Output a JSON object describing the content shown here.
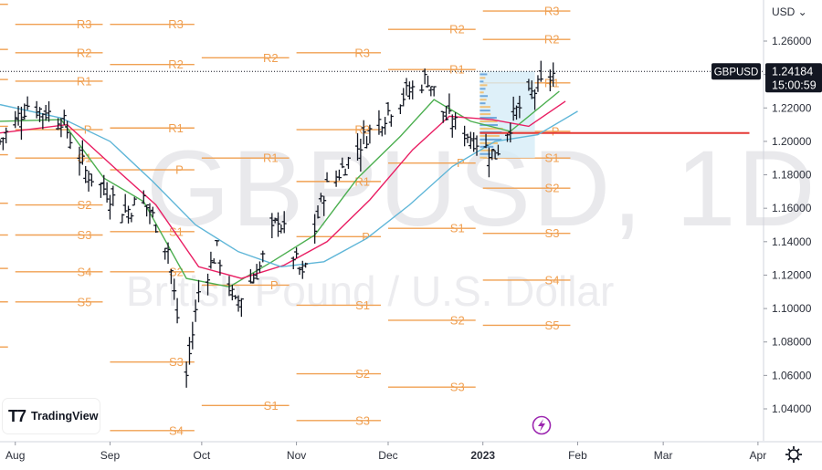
{
  "watermark": {
    "symbol_text": "GBPUSD, 1D",
    "name_text": "British Pound / U.S. Dollar"
  },
  "branding": {
    "name": "TradingView"
  },
  "price_axis": {
    "currency": "USD",
    "currency_menu": "⌄",
    "last_price": "1.24184",
    "countdown": "15:00:59",
    "symbol_tag": "GBPUSD"
  },
  "colors": {
    "candle": "#131722",
    "pivot": "#f0a052",
    "sma_fast": "#4caf50",
    "sma_mid": "#e91e63",
    "sma_slow": "#5fb6d8",
    "profile_poc": "#e53935",
    "profile_bars": "#6fa8dc",
    "profile_box": "#d6ecf7"
  },
  "chart_data": {
    "type": "ohlc",
    "symbol": "GBPUSD",
    "timeframe": "1D",
    "y_ticks": [
      1.26,
      1.24,
      1.22,
      1.2,
      1.18,
      1.16,
      1.14,
      1.12,
      1.1,
      1.08,
      1.06,
      1.04
    ],
    "y_tick_labels": [
      "1.26000",
      "1.24000",
      "1.22000",
      "1.20000",
      "1.18000",
      "1.16000",
      "1.14000",
      "1.12000",
      "1.10000",
      "1.08000",
      "1.06000",
      "1.04000"
    ],
    "ylim": [
      1.025,
      1.283
    ],
    "x_range": [
      "2022-07-27",
      "2023-04-10"
    ],
    "x_ticks": [
      {
        "date": "2022-08-01",
        "label": "Aug"
      },
      {
        "date": "2022-09-01",
        "label": "Sep"
      },
      {
        "date": "2022-10-01",
        "label": "Oct"
      },
      {
        "date": "2022-11-01",
        "label": "Nov"
      },
      {
        "date": "2022-12-01",
        "label": "Dec"
      },
      {
        "date": "2023-01-01",
        "label": "2023"
      },
      {
        "date": "2023-02-01",
        "label": "Feb"
      },
      {
        "date": "2023-03-01",
        "label": "Mar"
      },
      {
        "date": "2023-04-01",
        "label": "Apr"
      }
    ],
    "last_price": 1.24184,
    "price_path": [
      {
        "date": "2022-07-27",
        "close": 1.2
      },
      {
        "date": "2022-08-05",
        "close": 1.222
      },
      {
        "date": "2022-08-10",
        "close": 1.218
      },
      {
        "date": "2022-08-16",
        "close": 1.214
      },
      {
        "date": "2022-08-24",
        "close": 1.182
      },
      {
        "date": "2022-08-30",
        "close": 1.172
      },
      {
        "date": "2022-09-06",
        "close": 1.158
      },
      {
        "date": "2022-09-12",
        "close": 1.166
      },
      {
        "date": "2022-09-20",
        "close": 1.136
      },
      {
        "date": "2022-09-23",
        "close": 1.095
      },
      {
        "date": "2022-09-26",
        "close": 1.06
      },
      {
        "date": "2022-09-30",
        "close": 1.11
      },
      {
        "date": "2022-10-06",
        "close": 1.135
      },
      {
        "date": "2022-10-12",
        "close": 1.102
      },
      {
        "date": "2022-10-20",
        "close": 1.125
      },
      {
        "date": "2022-10-26",
        "close": 1.155
      },
      {
        "date": "2022-11-03",
        "close": 1.118
      },
      {
        "date": "2022-11-10",
        "close": 1.17
      },
      {
        "date": "2022-11-17",
        "close": 1.186
      },
      {
        "date": "2022-11-24",
        "close": 1.204
      },
      {
        "date": "2022-12-05",
        "close": 1.226
      },
      {
        "date": "2022-12-14",
        "close": 1.238
      },
      {
        "date": "2022-12-20",
        "close": 1.214
      },
      {
        "date": "2022-12-28",
        "close": 1.203
      },
      {
        "date": "2023-01-05",
        "close": 1.192
      },
      {
        "date": "2023-01-12",
        "close": 1.218
      },
      {
        "date": "2023-01-18",
        "close": 1.23
      },
      {
        "date": "2023-01-24",
        "close": 1.24
      }
    ],
    "moving_averages": [
      {
        "color": "#4caf50",
        "points": [
          {
            "date": "2022-07-27",
            "value": 1.212
          },
          {
            "date": "2022-08-16",
            "value": 1.213
          },
          {
            "date": "2022-08-30",
            "value": 1.178
          },
          {
            "date": "2022-09-12",
            "value": 1.164
          },
          {
            "date": "2022-09-26",
            "value": 1.118
          },
          {
            "date": "2022-10-10",
            "value": 1.113
          },
          {
            "date": "2022-10-24",
            "value": 1.128
          },
          {
            "date": "2022-11-07",
            "value": 1.144
          },
          {
            "date": "2022-11-21",
            "value": 1.178
          },
          {
            "date": "2022-12-05",
            "value": 1.203
          },
          {
            "date": "2022-12-16",
            "value": 1.225
          },
          {
            "date": "2022-12-28",
            "value": 1.212
          },
          {
            "date": "2023-01-10",
            "value": 1.206
          },
          {
            "date": "2023-01-26",
            "value": 1.23
          }
        ]
      },
      {
        "color": "#e91e63",
        "points": [
          {
            "date": "2022-07-27",
            "value": 1.205
          },
          {
            "date": "2022-08-18",
            "value": 1.21
          },
          {
            "date": "2022-09-02",
            "value": 1.185
          },
          {
            "date": "2022-09-16",
            "value": 1.162
          },
          {
            "date": "2022-09-30",
            "value": 1.125
          },
          {
            "date": "2022-10-14",
            "value": 1.118
          },
          {
            "date": "2022-10-28",
            "value": 1.126
          },
          {
            "date": "2022-11-11",
            "value": 1.14
          },
          {
            "date": "2022-11-25",
            "value": 1.165
          },
          {
            "date": "2022-12-09",
            "value": 1.195
          },
          {
            "date": "2022-12-21",
            "value": 1.215
          },
          {
            "date": "2023-01-04",
            "value": 1.213
          },
          {
            "date": "2023-01-16",
            "value": 1.209
          },
          {
            "date": "2023-01-28",
            "value": 1.224
          }
        ]
      },
      {
        "color": "#5fb6d8",
        "points": [
          {
            "date": "2022-07-27",
            "value": 1.222
          },
          {
            "date": "2022-08-16",
            "value": 1.214
          },
          {
            "date": "2022-09-01",
            "value": 1.2
          },
          {
            "date": "2022-09-15",
            "value": 1.176
          },
          {
            "date": "2022-09-29",
            "value": 1.15
          },
          {
            "date": "2022-10-13",
            "value": 1.134
          },
          {
            "date": "2022-10-27",
            "value": 1.125
          },
          {
            "date": "2022-11-10",
            "value": 1.128
          },
          {
            "date": "2022-11-24",
            "value": 1.142
          },
          {
            "date": "2022-12-08",
            "value": 1.162
          },
          {
            "date": "2022-12-22",
            "value": 1.185
          },
          {
            "date": "2023-01-05",
            "value": 1.2
          },
          {
            "date": "2023-01-19",
            "value": 1.204
          },
          {
            "date": "2023-02-01",
            "value": 1.218
          }
        ]
      }
    ],
    "pivot_levels": [
      {
        "start": "2022-07-27",
        "end": "2022-08-01",
        "levels": [
          {
            "label": "R3",
            "price": 1.282
          },
          {
            "label": "R2",
            "price": 1.255
          },
          {
            "label": "R1",
            "price": 1.237
          },
          {
            "label": "P",
            "price": 1.209
          },
          {
            "label": "S1",
            "price": 1.192
          },
          {
            "label": "S2",
            "price": 1.163
          },
          {
            "label": "S3",
            "price": 1.144
          },
          {
            "label": "S4",
            "price": 1.124
          },
          {
            "label": "S5",
            "price": 1.104
          },
          {
            "label": "",
            "price": 1.077
          }
        ]
      },
      {
        "start": "2022-08-01",
        "end": "2022-09-01",
        "levels": [
          {
            "label": "R3",
            "price": 1.27
          },
          {
            "label": "R2",
            "price": 1.253
          },
          {
            "label": "R1",
            "price": 1.236
          },
          {
            "label": "P",
            "price": 1.207
          },
          {
            "label": "S1",
            "price": 1.19
          },
          {
            "label": "S2",
            "price": 1.162
          },
          {
            "label": "S3",
            "price": 1.144
          },
          {
            "label": "S4",
            "price": 1.122
          },
          {
            "label": "S5",
            "price": 1.104
          }
        ]
      },
      {
        "start": "2022-09-01",
        "end": "2022-10-01",
        "levels": [
          {
            "label": "R3",
            "price": 1.27
          },
          {
            "label": "R2",
            "price": 1.246
          },
          {
            "label": "R1",
            "price": 1.208
          },
          {
            "label": "P",
            "price": 1.183
          },
          {
            "label": "S1",
            "price": 1.146
          },
          {
            "label": "S2",
            "price": 1.122
          },
          {
            "label": "S3",
            "price": 1.068
          },
          {
            "label": "S4",
            "price": 1.027
          }
        ]
      },
      {
        "start": "2022-10-01",
        "end": "2022-11-01",
        "levels": [
          {
            "label": "R2",
            "price": 1.25
          },
          {
            "label": "R1",
            "price": 1.19
          },
          {
            "label": "P",
            "price": 1.114
          },
          {
            "label": "S1",
            "price": 1.042
          }
        ]
      },
      {
        "start": "2022-11-01",
        "end": "2022-12-01",
        "levels": [
          {
            "label": "R3",
            "price": 1.253
          },
          {
            "label": "R2",
            "price": 1.207
          },
          {
            "label": "R1",
            "price": 1.176
          },
          {
            "label": "P",
            "price": 1.143
          },
          {
            "label": "S1",
            "price": 1.102
          },
          {
            "label": "S2",
            "price": 1.061
          },
          {
            "label": "S3",
            "price": 1.033
          }
        ]
      },
      {
        "start": "2022-12-01",
        "end": "2023-01-01",
        "levels": [
          {
            "label": "R2",
            "price": 1.267
          },
          {
            "label": "R1",
            "price": 1.243
          },
          {
            "label": "P",
            "price": 1.187
          },
          {
            "label": "S1",
            "price": 1.148
          },
          {
            "label": "S2",
            "price": 1.093
          },
          {
            "label": "S3",
            "price": 1.053
          }
        ]
      },
      {
        "start": "2023-01-01",
        "end": "2023-02-01",
        "levels": [
          {
            "label": "R3",
            "price": 1.278
          },
          {
            "label": "R2",
            "price": 1.261
          },
          {
            "label": "R1",
            "price": 1.235
          },
          {
            "label": "P",
            "price": 1.206
          },
          {
            "label": "S1",
            "price": 1.19
          },
          {
            "label": "S2",
            "price": 1.172
          },
          {
            "label": "S3",
            "price": 1.145
          },
          {
            "label": "S4",
            "price": 1.117
          },
          {
            "label": "S5",
            "price": 1.09
          }
        ]
      }
    ],
    "volume_profile": {
      "start": "2022-12-31",
      "end": "2023-01-18",
      "top": 1.242,
      "bottom": 1.19,
      "poc_price": 1.205
    },
    "pivot_label_pos": [
      [
        15,
        2
      ],
      [
        125,
        16
      ],
      [
        420,
        12
      ],
      [
        513,
        9
      ],
      [
        -1,
        -1
      ]
    ]
  }
}
